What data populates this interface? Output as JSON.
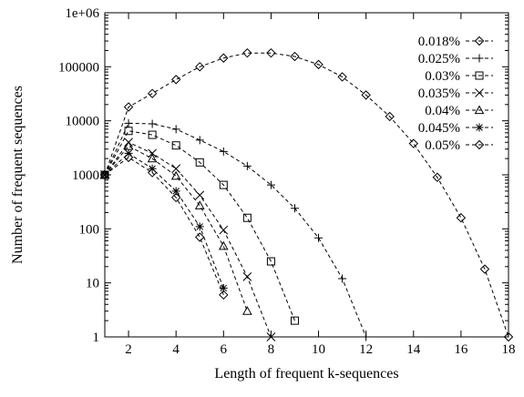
{
  "chart_data": {
    "type": "line",
    "title": "",
    "xlabel": "Length of frequent k-sequences",
    "ylabel": "Number of frequent sequences",
    "xlim": [
      1,
      18
    ],
    "ylim": [
      1,
      1000000
    ],
    "yscale": "log",
    "grid": false,
    "legend_position": "top-right",
    "x_ticks": [
      2,
      4,
      6,
      8,
      10,
      12,
      14,
      16,
      18
    ],
    "x_tick_labels": [
      "2",
      "4",
      "6",
      "8",
      "10",
      "12",
      "14",
      "16",
      "18"
    ],
    "y_ticks": [
      1,
      10,
      100,
      1000,
      10000,
      100000,
      1000000
    ],
    "y_tick_labels": [
      "1",
      "10",
      "100",
      "1000",
      "10000",
      "100000",
      "1e+06"
    ],
    "series": [
      {
        "name": "0.018%",
        "marker": "diamond",
        "x": [
          1,
          2,
          3,
          4,
          5,
          6,
          7,
          8,
          9,
          10,
          11,
          12,
          13,
          14,
          15,
          16,
          17,
          18
        ],
        "y": [
          1000,
          18000,
          32000,
          58000,
          100000,
          145000,
          180000,
          180000,
          155000,
          110000,
          65000,
          30000,
          12000,
          3800,
          900,
          160,
          18,
          1
        ]
      },
      {
        "name": "0.025%",
        "marker": "plus",
        "x": [
          1,
          2,
          3,
          4,
          5,
          6,
          7,
          8,
          9,
          10,
          11,
          12
        ],
        "y": [
          1000,
          9000,
          8800,
          7000,
          4400,
          2700,
          1450,
          650,
          240,
          68,
          12,
          1
        ]
      },
      {
        "name": "0.03%",
        "marker": "square",
        "x": [
          1,
          2,
          3,
          4,
          5,
          6,
          7,
          8,
          9
        ],
        "y": [
          1000,
          6500,
          5500,
          3500,
          1700,
          650,
          160,
          25,
          2
        ]
      },
      {
        "name": "0.035%",
        "marker": "x",
        "x": [
          1,
          2,
          3,
          4,
          5,
          6,
          7,
          8
        ],
        "y": [
          1000,
          4000,
          2500,
          1300,
          420,
          95,
          13,
          1
        ]
      },
      {
        "name": "0.04%",
        "marker": "triangle",
        "x": [
          1,
          2,
          3,
          4,
          5,
          6,
          7
        ],
        "y": [
          1000,
          3400,
          2000,
          950,
          270,
          48,
          3
        ]
      },
      {
        "name": "0.045%",
        "marker": "star",
        "x": [
          1,
          2,
          3,
          4,
          5,
          6
        ],
        "y": [
          1000,
          2500,
          1300,
          500,
          110,
          8
        ]
      },
      {
        "name": "0.05%",
        "marker": "diamond",
        "x": [
          1,
          2,
          3,
          4,
          5,
          6
        ],
        "y": [
          1000,
          2100,
          1100,
          380,
          70,
          6
        ]
      }
    ]
  }
}
